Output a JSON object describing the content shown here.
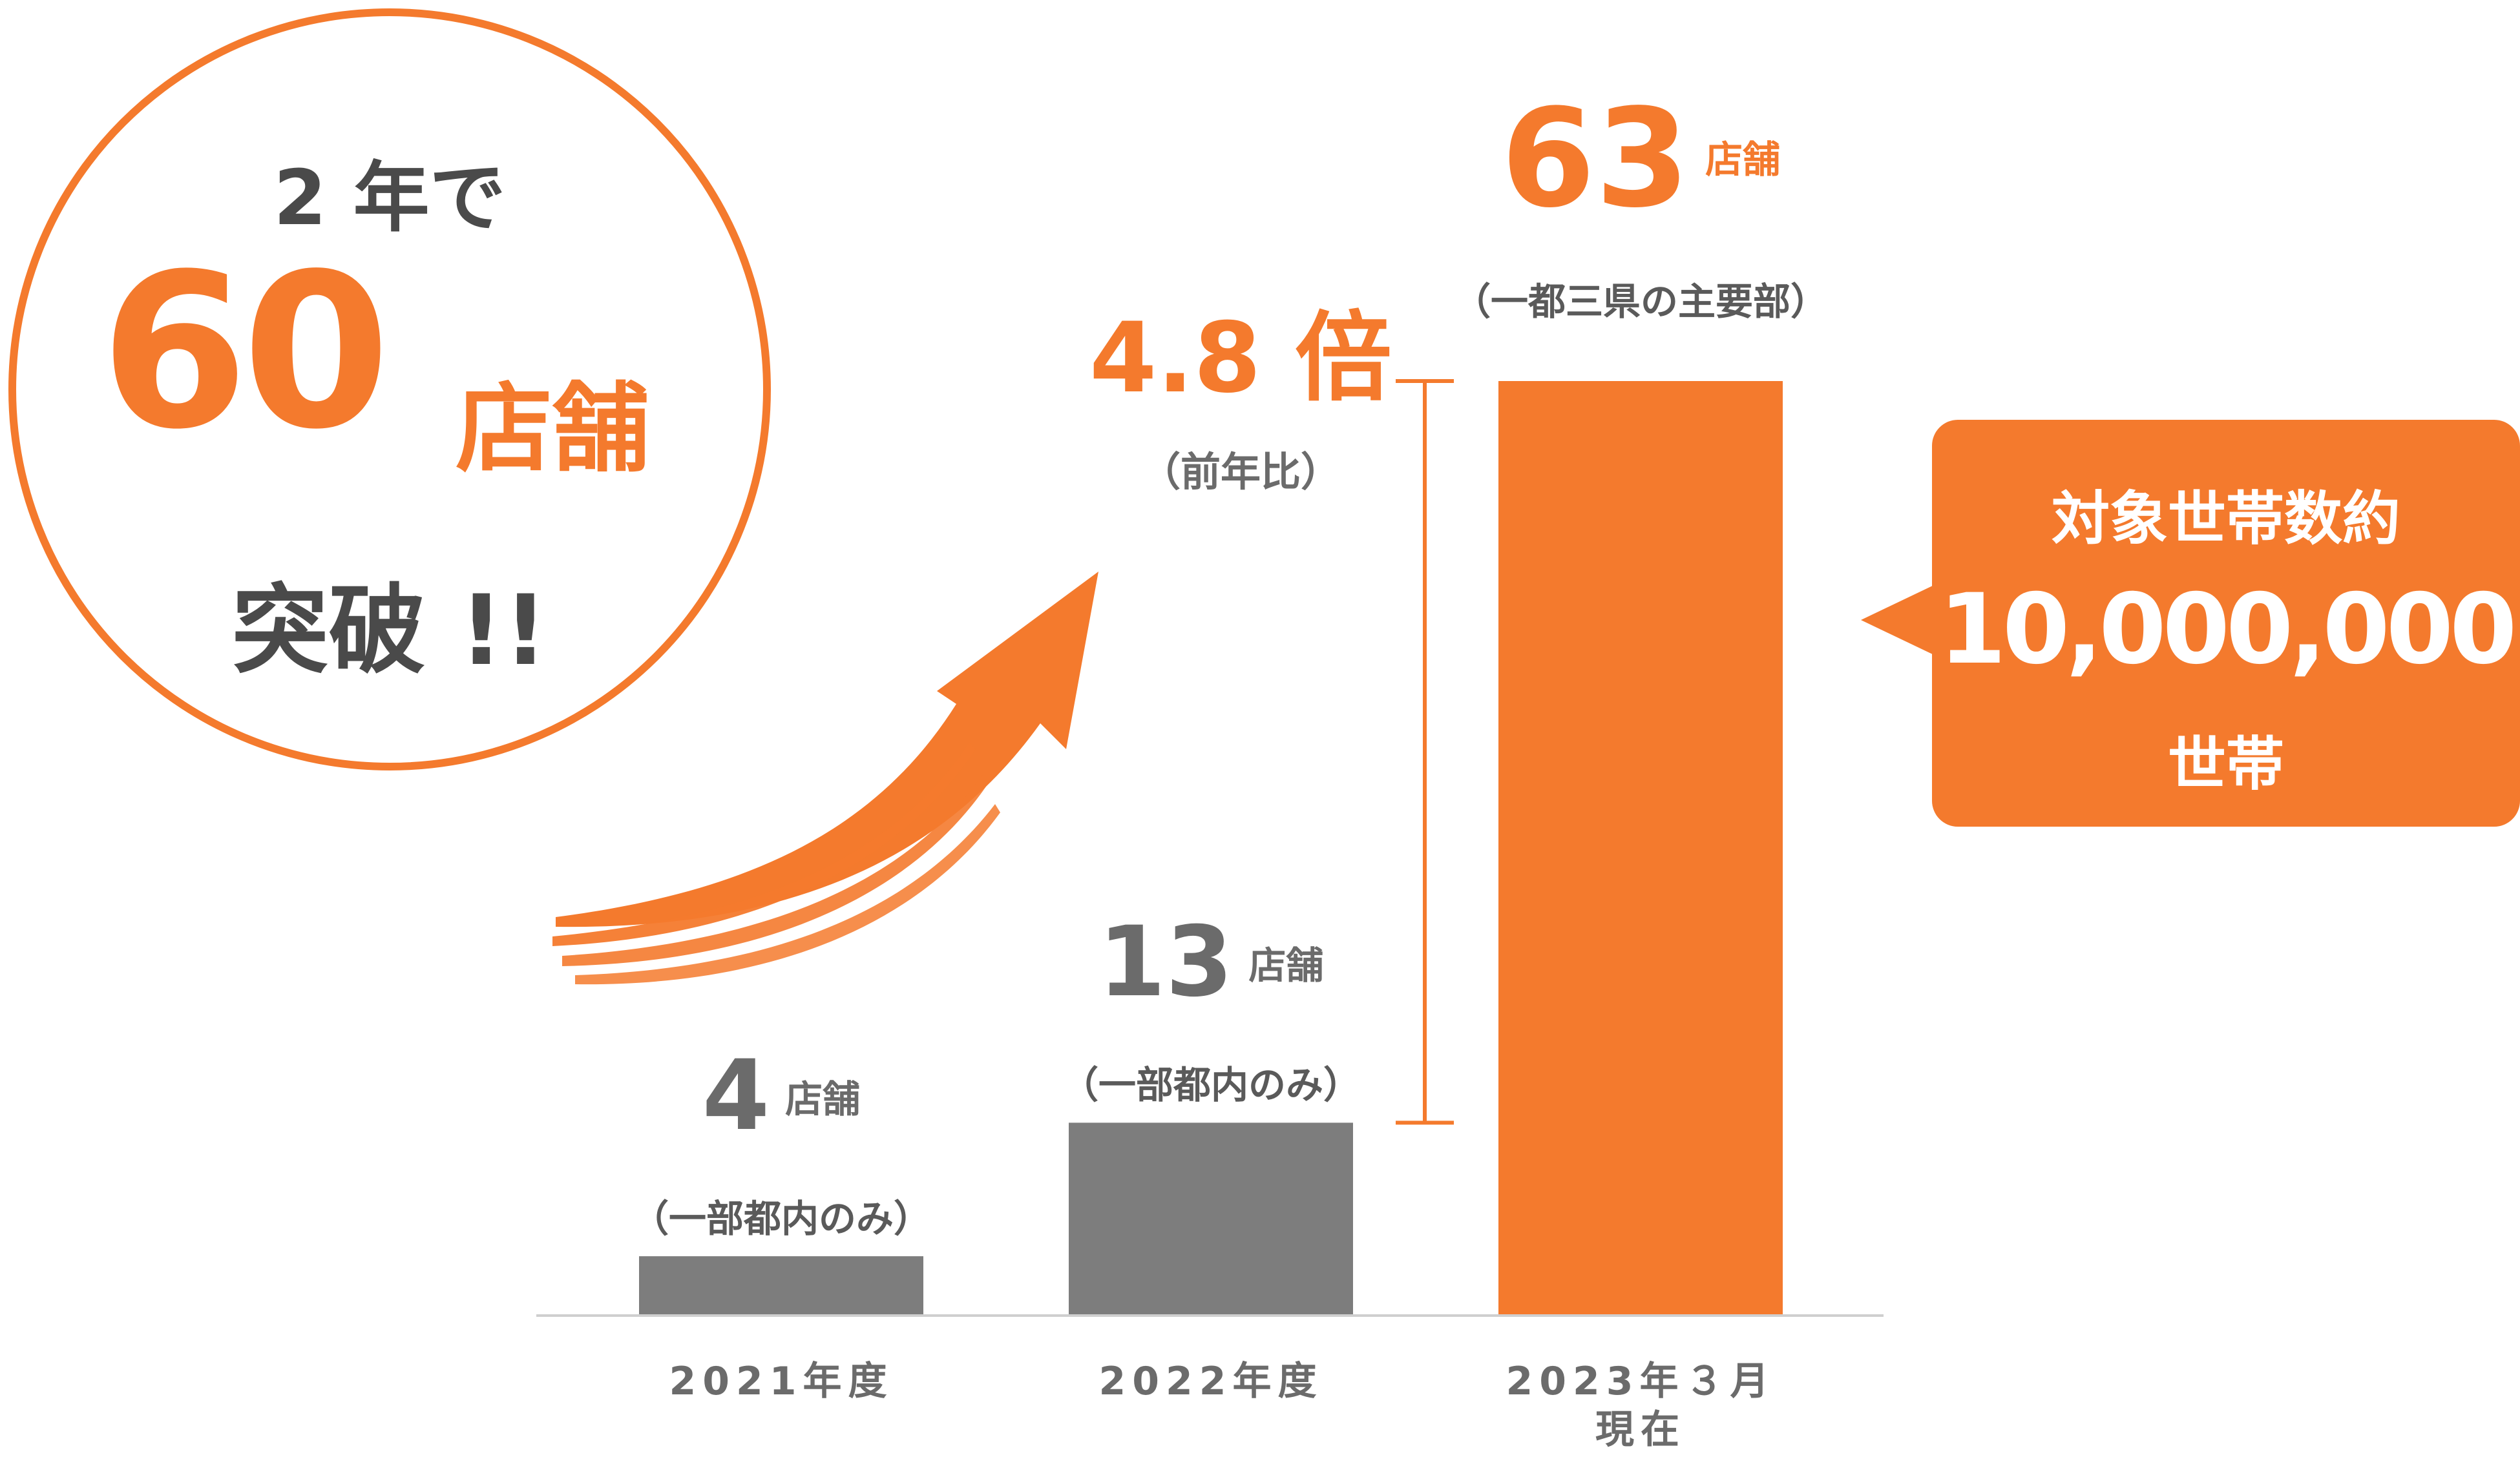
{
  "colors": {
    "accent": "#f47a2d",
    "bar_gray": "#7d7d7d",
    "text_gray": "#6b6b6b",
    "axis": "#cfcfcf"
  },
  "badge": {
    "line1": "2 年で",
    "number": "60",
    "unit": "店舗",
    "line3": "突破 !!"
  },
  "growth": {
    "multiplier": "4.8 倍",
    "note": "（前年比）"
  },
  "callout": {
    "line1": "対象世帯数約",
    "number": "10,000,000",
    "line3": "世帯"
  },
  "chart_data": {
    "type": "bar",
    "categories": [
      "2021年度",
      "2022年度",
      "2023年３月現在"
    ],
    "values": [
      4,
      13,
      63
    ],
    "unit": "店舗",
    "value_labels": [
      "4",
      "13",
      "63"
    ],
    "notes": [
      "（一部都内のみ）",
      "（一部都内のみ）",
      "（一都三県の主要部）"
    ],
    "category_lines": [
      [
        "2021年度"
      ],
      [
        "2022年度"
      ],
      [
        "2023年３月",
        "現在"
      ]
    ],
    "bar_colors": [
      "#7d7d7d",
      "#7d7d7d",
      "#f47a2d"
    ],
    "ylim": [
      0,
      63
    ],
    "grid": false,
    "legend": "none"
  }
}
